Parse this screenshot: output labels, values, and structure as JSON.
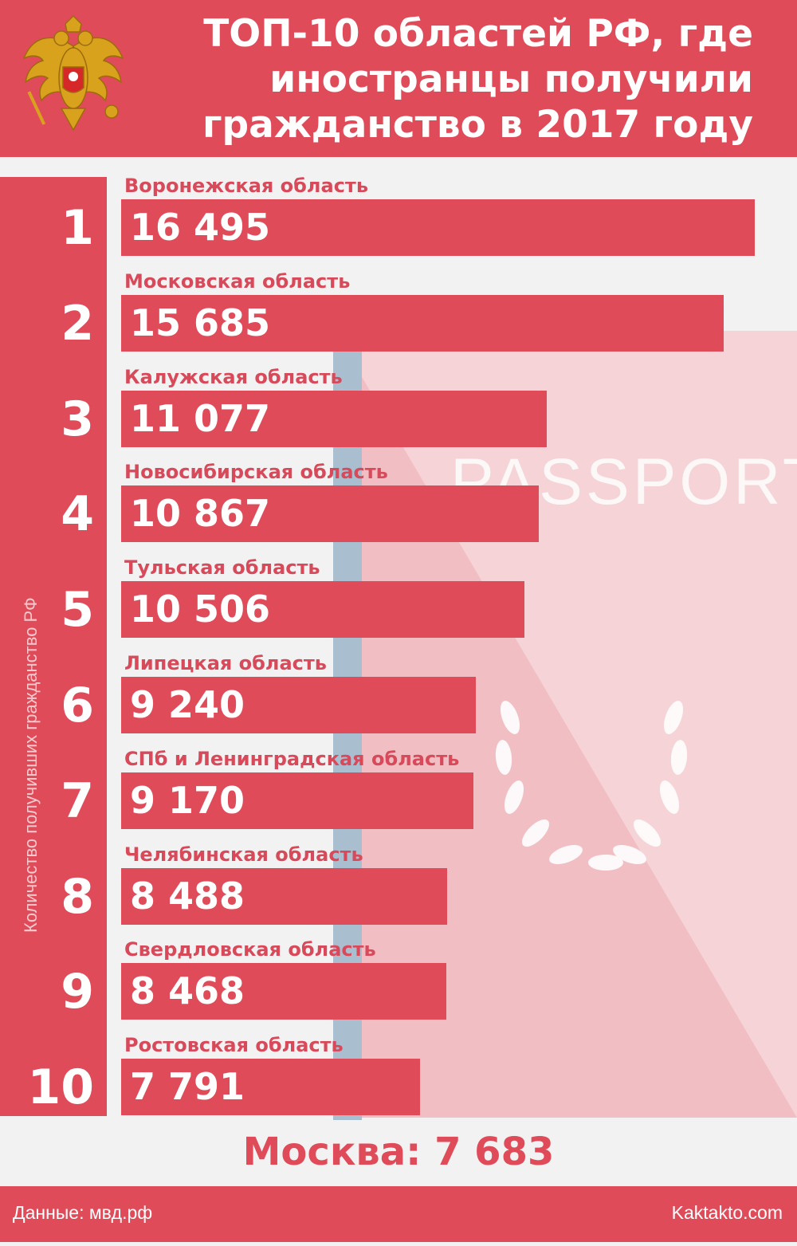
{
  "header": {
    "title_lines": [
      "ТОП-10 областей РФ, где",
      "иностранцы получили",
      "гражданство в 2017 году"
    ]
  },
  "decoration": {
    "watermark": "PASSPORT"
  },
  "chart_data": {
    "type": "bar",
    "orientation": "horizontal",
    "ylabel": "Количество получивших гражданство РФ",
    "ranks": [
      "1",
      "2",
      "3",
      "4",
      "5",
      "6",
      "7",
      "8",
      "9",
      "10"
    ],
    "categories": [
      "Воронежская область",
      "Московская область",
      "Калужская область",
      "Новосибирская область",
      "Тульская область",
      "Липецкая область",
      "СПб и Ленинградская область",
      "Челябинская область",
      "Свердловская область",
      "Ростовская область"
    ],
    "values": [
      16495,
      15685,
      11077,
      10867,
      10506,
      9240,
      9170,
      8488,
      8468,
      7791
    ],
    "value_labels": [
      "16 495",
      "15 685",
      "11 077",
      "10 867",
      "10 506",
      "9 240",
      "9 170",
      "8 488",
      "8 468",
      "7 791"
    ]
  },
  "moscow": "Москва: 7 683",
  "footer": {
    "source": "Данные: мвд.рф",
    "site": "Kaktakto.com"
  },
  "colors": {
    "accent": "#e04b59",
    "background": "#f2f2f2",
    "passport": "#f2c3c7",
    "stripe": "#a9bfd0"
  }
}
